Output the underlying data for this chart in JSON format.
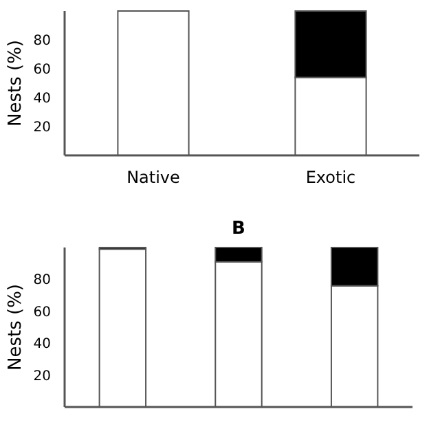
{
  "chart_data": [
    {
      "type": "bar",
      "categories": [
        "Native",
        "Exotic"
      ],
      "stacked": true,
      "ylabel": "Nests (%)",
      "ylim": [
        0,
        100
      ],
      "yticks": [
        20,
        40,
        60,
        80
      ],
      "series": [
        {
          "color": "#ffffff",
          "values": [
            100,
            54
          ]
        },
        {
          "color": "#000000",
          "values": [
            0,
            46
          ]
        }
      ]
    },
    {
      "type": "bar",
      "title": "B",
      "categories": [
        null,
        null,
        null
      ],
      "stacked": true,
      "ylabel": "Nests (%)",
      "ylim": [
        0,
        100
      ],
      "yticks": [
        20,
        40,
        60,
        80
      ],
      "series": [
        {
          "color": "#ffffff",
          "values": [
            99,
            91,
            76
          ]
        },
        {
          "color": "#000000",
          "values": [
            1,
            9,
            24
          ]
        }
      ]
    }
  ]
}
